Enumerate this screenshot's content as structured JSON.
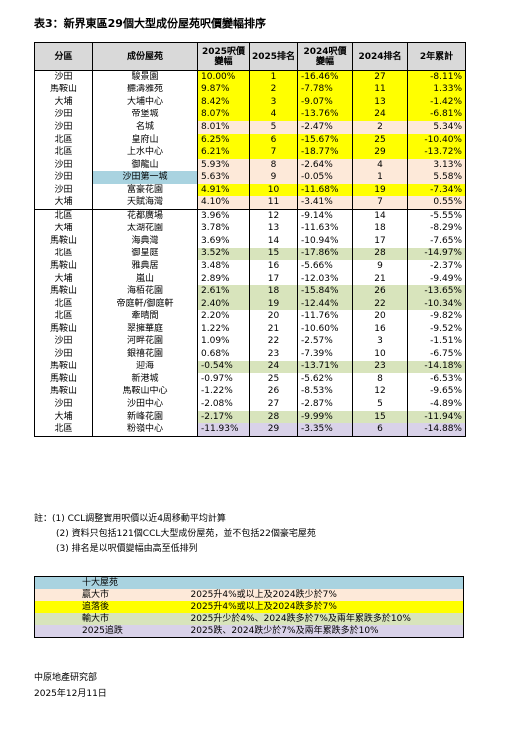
{
  "title": "表3：新界東區29個大型成份屋苑呎價變幅排序",
  "headers": [
    "分區",
    "成份屋苑",
    "2025呎價\n變幅",
    "2025排名",
    "2024呎價\n變幅",
    "2024排名",
    "2年累計"
  ],
  "rows": [
    {
      "district": "沙田",
      "name": "駿景園",
      "p2025": "10.00%",
      "r2025": "1",
      "p2024": "-16.46%",
      "r2024": "27",
      "cum": "-8.11%",
      "cat": "yel"
    },
    {
      "district": "馬鞍山",
      "name": "聽濤雅苑",
      "p2025": "9.87%",
      "r2025": "2",
      "p2024": "-7.78%",
      "r2024": "11",
      "cum": "1.33%",
      "cat": "yel"
    },
    {
      "district": "大埔",
      "name": "大埔中心",
      "p2025": "8.42%",
      "r2025": "3",
      "p2024": "-9.07%",
      "r2024": "13",
      "cum": "-1.42%",
      "cat": "yel"
    },
    {
      "district": "沙田",
      "name": "帝堡城",
      "p2025": "8.07%",
      "r2025": "4",
      "p2024": "-13.76%",
      "r2024": "24",
      "cum": "-6.81%",
      "cat": "yel"
    },
    {
      "district": "沙田",
      "name": "名城",
      "p2025": "8.01%",
      "r2025": "5",
      "p2024": "-2.47%",
      "r2024": "2",
      "cum": "5.34%",
      "cat": "peach"
    },
    {
      "district": "北區",
      "name": "皇府山",
      "p2025": "6.25%",
      "r2025": "6",
      "p2024": "-15.67%",
      "r2024": "25",
      "cum": "-10.40%",
      "cat": "yel"
    },
    {
      "district": "北區",
      "name": "上水中心",
      "p2025": "6.21%",
      "r2025": "7",
      "p2024": "-18.77%",
      "r2024": "29",
      "cum": "-13.72%",
      "cat": "yel"
    },
    {
      "district": "沙田",
      "name": "御龍山",
      "p2025": "5.93%",
      "r2025": "8",
      "p2024": "-2.64%",
      "r2024": "4",
      "cum": "3.13%",
      "cat": "peach"
    },
    {
      "district": "沙田",
      "name": "沙田第一城",
      "p2025": "5.63%",
      "r2025": "9",
      "p2024": "-0.05%",
      "r2024": "1",
      "cum": "5.58%",
      "cat": "peach",
      "blue": true
    },
    {
      "district": "沙田",
      "name": "富豪花園",
      "p2025": "4.91%",
      "r2025": "10",
      "p2024": "-11.68%",
      "r2024": "19",
      "cum": "-7.34%",
      "cat": "yel"
    },
    {
      "district": "大埔",
      "name": "天賦海灣",
      "p2025": "4.10%",
      "r2025": "11",
      "p2024": "-3.41%",
      "r2024": "7",
      "cum": "0.55%",
      "cat": "peach"
    },
    {
      "district": "北區",
      "name": "花都廣場",
      "p2025": "3.96%",
      "r2025": "12",
      "p2024": "-9.14%",
      "r2024": "14",
      "cum": "-5.55%",
      "cat": "",
      "sep": true
    },
    {
      "district": "大埔",
      "name": "太湖花園",
      "p2025": "3.78%",
      "r2025": "13",
      "p2024": "-11.63%",
      "r2024": "18",
      "cum": "-8.29%",
      "cat": ""
    },
    {
      "district": "馬鞍山",
      "name": "海典灣",
      "p2025": "3.69%",
      "r2025": "14",
      "p2024": "-10.94%",
      "r2024": "17",
      "cum": "-7.65%",
      "cat": ""
    },
    {
      "district": "北區",
      "name": "御皇庭",
      "p2025": "3.52%",
      "r2025": "15",
      "p2024": "-17.86%",
      "r2024": "28",
      "cum": "-14.97%",
      "cat": "grn"
    },
    {
      "district": "馬鞍山",
      "name": "雅典居",
      "p2025": "3.48%",
      "r2025": "16",
      "p2024": "-5.66%",
      "r2024": "9",
      "cum": "-2.37%",
      "cat": ""
    },
    {
      "district": "大埔",
      "name": "嵐山",
      "p2025": "2.89%",
      "r2025": "17",
      "p2024": "-12.03%",
      "r2024": "21",
      "cum": "-9.49%",
      "cat": ""
    },
    {
      "district": "馬鞍山",
      "name": "海栢花園",
      "p2025": "2.61%",
      "r2025": "18",
      "p2024": "-15.84%",
      "r2024": "26",
      "cum": "-13.65%",
      "cat": "grn"
    },
    {
      "district": "北區",
      "name": "帝庭軒/御庭軒",
      "p2025": "2.40%",
      "r2025": "19",
      "p2024": "-12.44%",
      "r2024": "22",
      "cum": "-10.34%",
      "cat": "grn"
    },
    {
      "district": "北區",
      "name": "牽晴間",
      "p2025": "2.20%",
      "r2025": "20",
      "p2024": "-11.76%",
      "r2024": "20",
      "cum": "-9.82%",
      "cat": ""
    },
    {
      "district": "馬鞍山",
      "name": "翠擁華庭",
      "p2025": "1.22%",
      "r2025": "21",
      "p2024": "-10.60%",
      "r2024": "16",
      "cum": "-9.52%",
      "cat": ""
    },
    {
      "district": "沙田",
      "name": "河畔花園",
      "p2025": "1.09%",
      "r2025": "22",
      "p2024": "-2.57%",
      "r2024": "3",
      "cum": "-1.51%",
      "cat": ""
    },
    {
      "district": "沙田",
      "name": "銀禧花園",
      "p2025": "0.68%",
      "r2025": "23",
      "p2024": "-7.39%",
      "r2024": "10",
      "cum": "-6.75%",
      "cat": ""
    },
    {
      "district": "馬鞍山",
      "name": "迎海",
      "p2025": "-0.54%",
      "r2025": "24",
      "p2024": "-13.71%",
      "r2024": "23",
      "cum": "-14.18%",
      "cat": "grn"
    },
    {
      "district": "馬鞍山",
      "name": "新港城",
      "p2025": "-0.97%",
      "r2025": "25",
      "p2024": "-5.62%",
      "r2024": "8",
      "cum": "-6.53%",
      "cat": ""
    },
    {
      "district": "馬鞍山",
      "name": "馬鞍山中心",
      "p2025": "-1.22%",
      "r2025": "26",
      "p2024": "-8.53%",
      "r2024": "12",
      "cum": "-9.65%",
      "cat": ""
    },
    {
      "district": "沙田",
      "name": "沙田中心",
      "p2025": "-2.08%",
      "r2025": "27",
      "p2024": "-2.87%",
      "r2024": "5",
      "cum": "-4.89%",
      "cat": ""
    },
    {
      "district": "大埔",
      "name": "新峰花園",
      "p2025": "-2.17%",
      "r2025": "28",
      "p2024": "-9.99%",
      "r2024": "15",
      "cum": "-11.94%",
      "cat": "grn"
    },
    {
      "district": "北區",
      "name": "粉嶺中心",
      "p2025": "-11.93%",
      "r2025": "29",
      "p2024": "-3.35%",
      "r2024": "6",
      "cum": "-14.88%",
      "cat": "lav"
    }
  ],
  "notes": [
    "註：(1) CCL調整實用呎價以近4周移動平均計算",
    "(2) 資料只包括121個CCL大型成份屋苑，並不包括22個豪宅屋苑",
    "(3) 排名是以呎價變幅由高至低排列"
  ],
  "legend": [
    {
      "label": "十大屋苑",
      "desc": "",
      "color": "#a9d3e0"
    },
    {
      "label": "贏大市",
      "desc": "2025升4%或以上及2024跌少於7%",
      "color": "#fde9d9"
    },
    {
      "label": "追落後",
      "desc": "2025升4%或以上及2024跌多於7%",
      "color": "#ffff00"
    },
    {
      "label": "輸大市",
      "desc": "2025升少於4%、2024跌多於7%及兩年累跌多於10%",
      "color": "#d8e4bc"
    },
    {
      "label": "2025追跌",
      "desc": "2025跌、2024跌少於7%及兩年累跌多於10%",
      "color": "#d9d2e9"
    }
  ],
  "footer": {
    "org": "中原地產研究部",
    "date": "2025年12月11日"
  }
}
